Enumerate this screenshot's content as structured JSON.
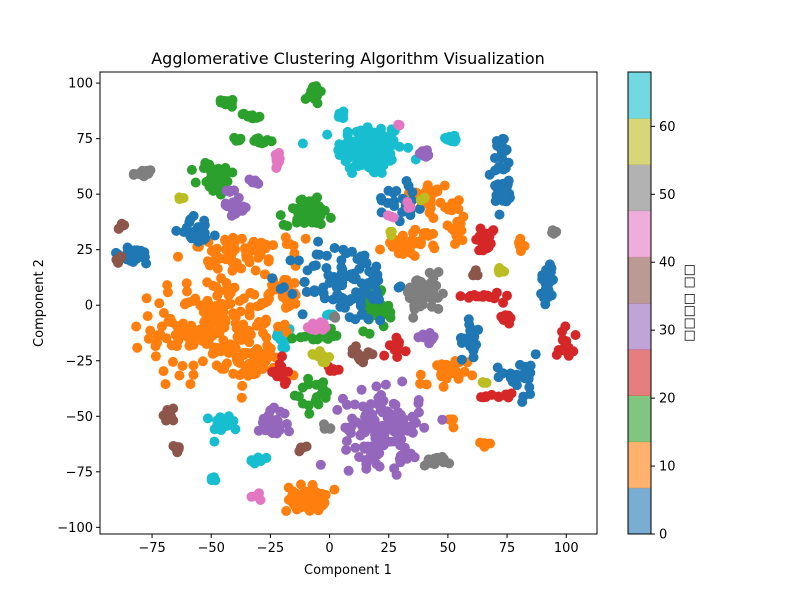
{
  "chart_data": {
    "type": "scatter",
    "title": "Agglomerative Clustering Algorithm Visualization",
    "xlabel": "Component 1",
    "ylabel": "Component 2",
    "xlim": [
      -97,
      113
    ],
    "ylim": [
      -103,
      105
    ],
    "xticks": [
      -75,
      -50,
      -25,
      0,
      25,
      50,
      75,
      100
    ],
    "yticks": [
      -100,
      -75,
      -50,
      -25,
      0,
      25,
      50,
      75,
      100
    ],
    "grid": false,
    "colorbar": {
      "label": "□□□□ □□",
      "range": [
        0,
        68
      ],
      "ticks": [
        0,
        10,
        20,
        30,
        40,
        50,
        60
      ],
      "colormap": "tab10",
      "colors": [
        "#1f77b4",
        "#ff7f0e",
        "#2ca02c",
        "#d62728",
        "#9467bd",
        "#8c564b",
        "#e377c2",
        "#7f7f7f",
        "#bcbd22",
        "#17becf"
      ]
    },
    "clusters": [
      {
        "color": 9,
        "cx": 17,
        "cy": 70,
        "sx": 7,
        "sy": 6,
        "n": 140
      },
      {
        "color": 9,
        "cx": 5,
        "cy": 86,
        "sx": 1,
        "sy": 1,
        "n": 6
      },
      {
        "color": 9,
        "cx": 52,
        "cy": 75,
        "sx": 1.5,
        "sy": 1,
        "n": 10
      },
      {
        "color": 9,
        "cx": 0,
        "cy": -4,
        "sx": 1,
        "sy": 1,
        "n": 4
      },
      {
        "color": 9,
        "cx": -19,
        "cy": -15,
        "sx": 2,
        "sy": 3,
        "n": 12
      },
      {
        "color": 9,
        "cx": -44,
        "cy": -53,
        "sx": 3,
        "sy": 2,
        "n": 18
      },
      {
        "color": 9,
        "cx": -30,
        "cy": -70,
        "sx": 2,
        "sy": 1,
        "n": 10
      },
      {
        "color": 9,
        "cx": -49,
        "cy": -78,
        "sx": 1,
        "sy": 1,
        "n": 5
      },
      {
        "color": 1,
        "cx": -49,
        "cy": -10,
        "sx": 13,
        "sy": 11,
        "n": 190
      },
      {
        "color": 1,
        "cx": -32,
        "cy": -27,
        "sx": 6,
        "sy": 4,
        "n": 40
      },
      {
        "color": 1,
        "cx": -36,
        "cy": 24,
        "sx": 12,
        "sy": 3,
        "n": 60
      },
      {
        "color": 1,
        "cx": -19,
        "cy": 5,
        "sx": 5,
        "sy": 5,
        "n": 30
      },
      {
        "color": 1,
        "cx": -10,
        "cy": -87,
        "sx": 4,
        "sy": 3,
        "n": 55
      },
      {
        "color": 1,
        "cx": 35,
        "cy": 28,
        "sx": 6,
        "sy": 3,
        "n": 35
      },
      {
        "color": 1,
        "cx": 43,
        "cy": 48,
        "sx": 4,
        "sy": 4,
        "n": 30
      },
      {
        "color": 1,
        "cx": 54,
        "cy": 37,
        "sx": 2,
        "sy": 4,
        "n": 15
      },
      {
        "color": 1,
        "cx": 48,
        "cy": -32,
        "sx": 5,
        "sy": 4,
        "n": 25
      },
      {
        "color": 1,
        "cx": 51,
        "cy": -52,
        "sx": 1,
        "sy": 1,
        "n": 5
      },
      {
        "color": 1,
        "cx": 66,
        "cy": -63,
        "sx": 1,
        "sy": 1,
        "n": 6
      },
      {
        "color": 1,
        "cx": 81,
        "cy": 27,
        "sx": 1,
        "sy": 2,
        "n": 8
      },
      {
        "color": 2,
        "cx": -9,
        "cy": 42,
        "sx": 5,
        "sy": 3,
        "n": 65
      },
      {
        "color": 2,
        "cx": 19,
        "cy": -3,
        "sx": 3,
        "sy": 4,
        "n": 40
      },
      {
        "color": 2,
        "cx": -48,
        "cy": 57,
        "sx": 4,
        "sy": 4,
        "n": 35
      },
      {
        "color": 2,
        "cx": -44,
        "cy": 92,
        "sx": 3,
        "sy": 1,
        "n": 10
      },
      {
        "color": 2,
        "cx": -33,
        "cy": 85,
        "sx": 2,
        "sy": 1,
        "n": 10
      },
      {
        "color": 2,
        "cx": -7,
        "cy": 95,
        "sx": 1.5,
        "sy": 2,
        "n": 15
      },
      {
        "color": 2,
        "cx": -28,
        "cy": 74,
        "sx": 2,
        "sy": 1,
        "n": 10
      },
      {
        "color": 2,
        "cx": -6,
        "cy": -14,
        "sx": 4,
        "sy": 1,
        "n": 15
      },
      {
        "color": 2,
        "cx": -5,
        "cy": -40,
        "sx": 5,
        "sy": 4,
        "n": 18
      },
      {
        "color": 2,
        "cx": -38,
        "cy": 74,
        "sx": 1,
        "sy": 1,
        "n": 5
      },
      {
        "color": 0,
        "cx": 7,
        "cy": 10,
        "sx": 10,
        "sy": 9,
        "n": 100
      },
      {
        "color": 0,
        "cx": -83,
        "cy": 22,
        "sx": 5,
        "sy": 2,
        "n": 25
      },
      {
        "color": 0,
        "cx": -55,
        "cy": 34,
        "sx": 4,
        "sy": 3,
        "n": 25
      },
      {
        "color": 0,
        "cx": 73,
        "cy": 60,
        "sx": 2,
        "sy": 9,
        "n": 40
      },
      {
        "color": 0,
        "cx": 92,
        "cy": 10,
        "sx": 1.5,
        "sy": 5,
        "n": 25
      },
      {
        "color": 0,
        "cx": 30,
        "cy": 50,
        "sx": 5,
        "sy": 6,
        "n": 20
      },
      {
        "color": 0,
        "cx": 60,
        "cy": -15,
        "sx": 2,
        "sy": 4,
        "n": 20
      },
      {
        "color": 0,
        "cx": 80,
        "cy": -32,
        "sx": 5,
        "sy": 5,
        "n": 25
      },
      {
        "color": 0,
        "cx": 75,
        "cy": 49,
        "sx": 2,
        "sy": 1,
        "n": 8
      },
      {
        "color": 4,
        "cx": 22,
        "cy": -55,
        "sx": 8,
        "sy": 8,
        "n": 130
      },
      {
        "color": 4,
        "cx": -24,
        "cy": -53,
        "sx": 3,
        "sy": 3,
        "n": 30
      },
      {
        "color": 4,
        "cx": 42,
        "cy": -15,
        "sx": 2,
        "sy": 1,
        "n": 15
      },
      {
        "color": 4,
        "cx": -40,
        "cy": 45,
        "sx": 3,
        "sy": 2,
        "n": 15
      },
      {
        "color": 4,
        "cx": -32,
        "cy": 55,
        "sx": 1.5,
        "sy": 1,
        "n": 8
      },
      {
        "color": 4,
        "cx": -43,
        "cy": 51,
        "sx": 1.5,
        "sy": 1,
        "n": 6
      },
      {
        "color": 4,
        "cx": 40,
        "cy": 68,
        "sx": 1.5,
        "sy": 1,
        "n": 8
      },
      {
        "color": 4,
        "cx": 33,
        "cy": -68,
        "sx": 2,
        "sy": 3,
        "n": 10
      },
      {
        "color": 3,
        "cx": 66,
        "cy": 30,
        "sx": 2,
        "sy": 3,
        "n": 25
      },
      {
        "color": 3,
        "cx": 65,
        "cy": 4,
        "sx": 4,
        "sy": 1,
        "n": 15
      },
      {
        "color": 3,
        "cx": 74,
        "cy": -6,
        "sx": 2,
        "sy": 1,
        "n": 10
      },
      {
        "color": 3,
        "cx": -21,
        "cy": -31,
        "sx": 1.5,
        "sy": 3,
        "n": 15
      },
      {
        "color": 3,
        "cx": 29,
        "cy": -19,
        "sx": 2,
        "sy": 2,
        "n": 12
      },
      {
        "color": 3,
        "cx": 100,
        "cy": -15,
        "sx": 2,
        "sy": 5,
        "n": 15
      },
      {
        "color": 3,
        "cx": 1,
        "cy": -29,
        "sx": 1,
        "sy": 1,
        "n": 5
      },
      {
        "color": 3,
        "cx": 70,
        "cy": -41,
        "sx": 4,
        "sy": 1,
        "n": 12
      },
      {
        "color": 7,
        "cx": 40,
        "cy": 5,
        "sx": 4,
        "sy": 4,
        "n": 55
      },
      {
        "color": 7,
        "cx": 45,
        "cy": -70,
        "sx": 3,
        "sy": 1,
        "n": 15
      },
      {
        "color": 7,
        "cx": -79,
        "cy": 59,
        "sx": 2,
        "sy": 1,
        "n": 12
      },
      {
        "color": 7,
        "cx": -1,
        "cy": -55,
        "sx": 1,
        "sy": 1,
        "n": 5
      },
      {
        "color": 7,
        "cx": 95,
        "cy": 33,
        "sx": 1,
        "sy": 1,
        "n": 4
      },
      {
        "color": 7,
        "cx": 2,
        "cy": -5,
        "sx": 1,
        "sy": 1,
        "n": 3
      },
      {
        "color": 5,
        "cx": 13,
        "cy": -22,
        "sx": 2,
        "sy": 1.5,
        "n": 15
      },
      {
        "color": 5,
        "cx": -68,
        "cy": -49,
        "sx": 1.5,
        "sy": 1.5,
        "n": 10
      },
      {
        "color": 5,
        "cx": -65,
        "cy": -65,
        "sx": 1,
        "sy": 1,
        "n": 6
      },
      {
        "color": 5,
        "cx": -88,
        "cy": 36,
        "sx": 1,
        "sy": 1,
        "n": 5
      },
      {
        "color": 5,
        "cx": -90,
        "cy": 21,
        "sx": 1,
        "sy": 1,
        "n": 4
      },
      {
        "color": 5,
        "cx": 62,
        "cy": 14,
        "sx": 1,
        "sy": 1,
        "n": 5
      },
      {
        "color": 5,
        "cx": -11,
        "cy": -64,
        "sx": 1,
        "sy": 1,
        "n": 4
      },
      {
        "color": 6,
        "cx": -6,
        "cy": -9,
        "sx": 2,
        "sy": 1.5,
        "n": 12
      },
      {
        "color": 6,
        "cx": -22,
        "cy": 65,
        "sx": 1,
        "sy": 1.5,
        "n": 8
      },
      {
        "color": 6,
        "cx": -30,
        "cy": -86,
        "sx": 1,
        "sy": 1,
        "n": 6
      },
      {
        "color": 6,
        "cx": 29,
        "cy": 81,
        "sx": 1,
        "sy": 1,
        "n": 3
      },
      {
        "color": 6,
        "cx": 25,
        "cy": 40,
        "sx": 1,
        "sy": 1,
        "n": 3
      },
      {
        "color": 6,
        "cx": 34,
        "cy": 44,
        "sx": 1,
        "sy": 1,
        "n": 3
      },
      {
        "color": 8,
        "cx": -4,
        "cy": -22,
        "sx": 1.5,
        "sy": 1.5,
        "n": 12
      },
      {
        "color": 8,
        "cx": 72,
        "cy": 16,
        "sx": 1,
        "sy": 1.5,
        "n": 8
      },
      {
        "color": 8,
        "cx": -62,
        "cy": 47,
        "sx": 1,
        "sy": 1,
        "n": 3
      },
      {
        "color": 8,
        "cx": 40,
        "cy": 48,
        "sx": 1,
        "sy": 1,
        "n": 3
      },
      {
        "color": 8,
        "cx": 65,
        "cy": -34,
        "sx": 1,
        "sy": 1,
        "n": 3
      },
      {
        "color": 8,
        "cx": 26,
        "cy": 32,
        "sx": 1,
        "sy": 1,
        "n": 3
      }
    ]
  }
}
